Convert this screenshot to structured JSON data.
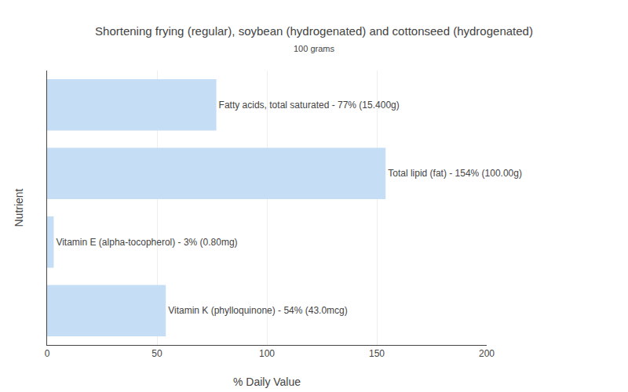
{
  "chart_data": {
    "type": "bar",
    "orientation": "horizontal",
    "title": "Shortening frying (regular), soybean (hydrogenated) and cottonseed (hydrogenated)",
    "subtitle": "100 grams",
    "x_label": "% Daily Value",
    "y_label": "Nutrient",
    "categories": [
      "Vitamin K (phylloquinone)",
      "Vitamin E (alpha-tocopherol)",
      "Total lipid (fat)",
      "Fatty acids, total saturated"
    ],
    "values": [
      54,
      3,
      154,
      77
    ],
    "value_labels": [
      "Vitamin K (phylloquinone) - 54% (43.0mcg)",
      "Vitamin E (alpha-tocopherol) - 3% (0.80mg)",
      "Total lipid (fat) - 154% (100.00g)",
      "Fatty acids, total saturated - 77% (15.400g)"
    ],
    "data_labels": true,
    "color": "#c5ddf5",
    "xlim": [
      0,
      200
    ],
    "xticks": [
      0,
      50,
      100,
      150,
      200
    ],
    "grid": true,
    "tick_labels": "x"
  }
}
